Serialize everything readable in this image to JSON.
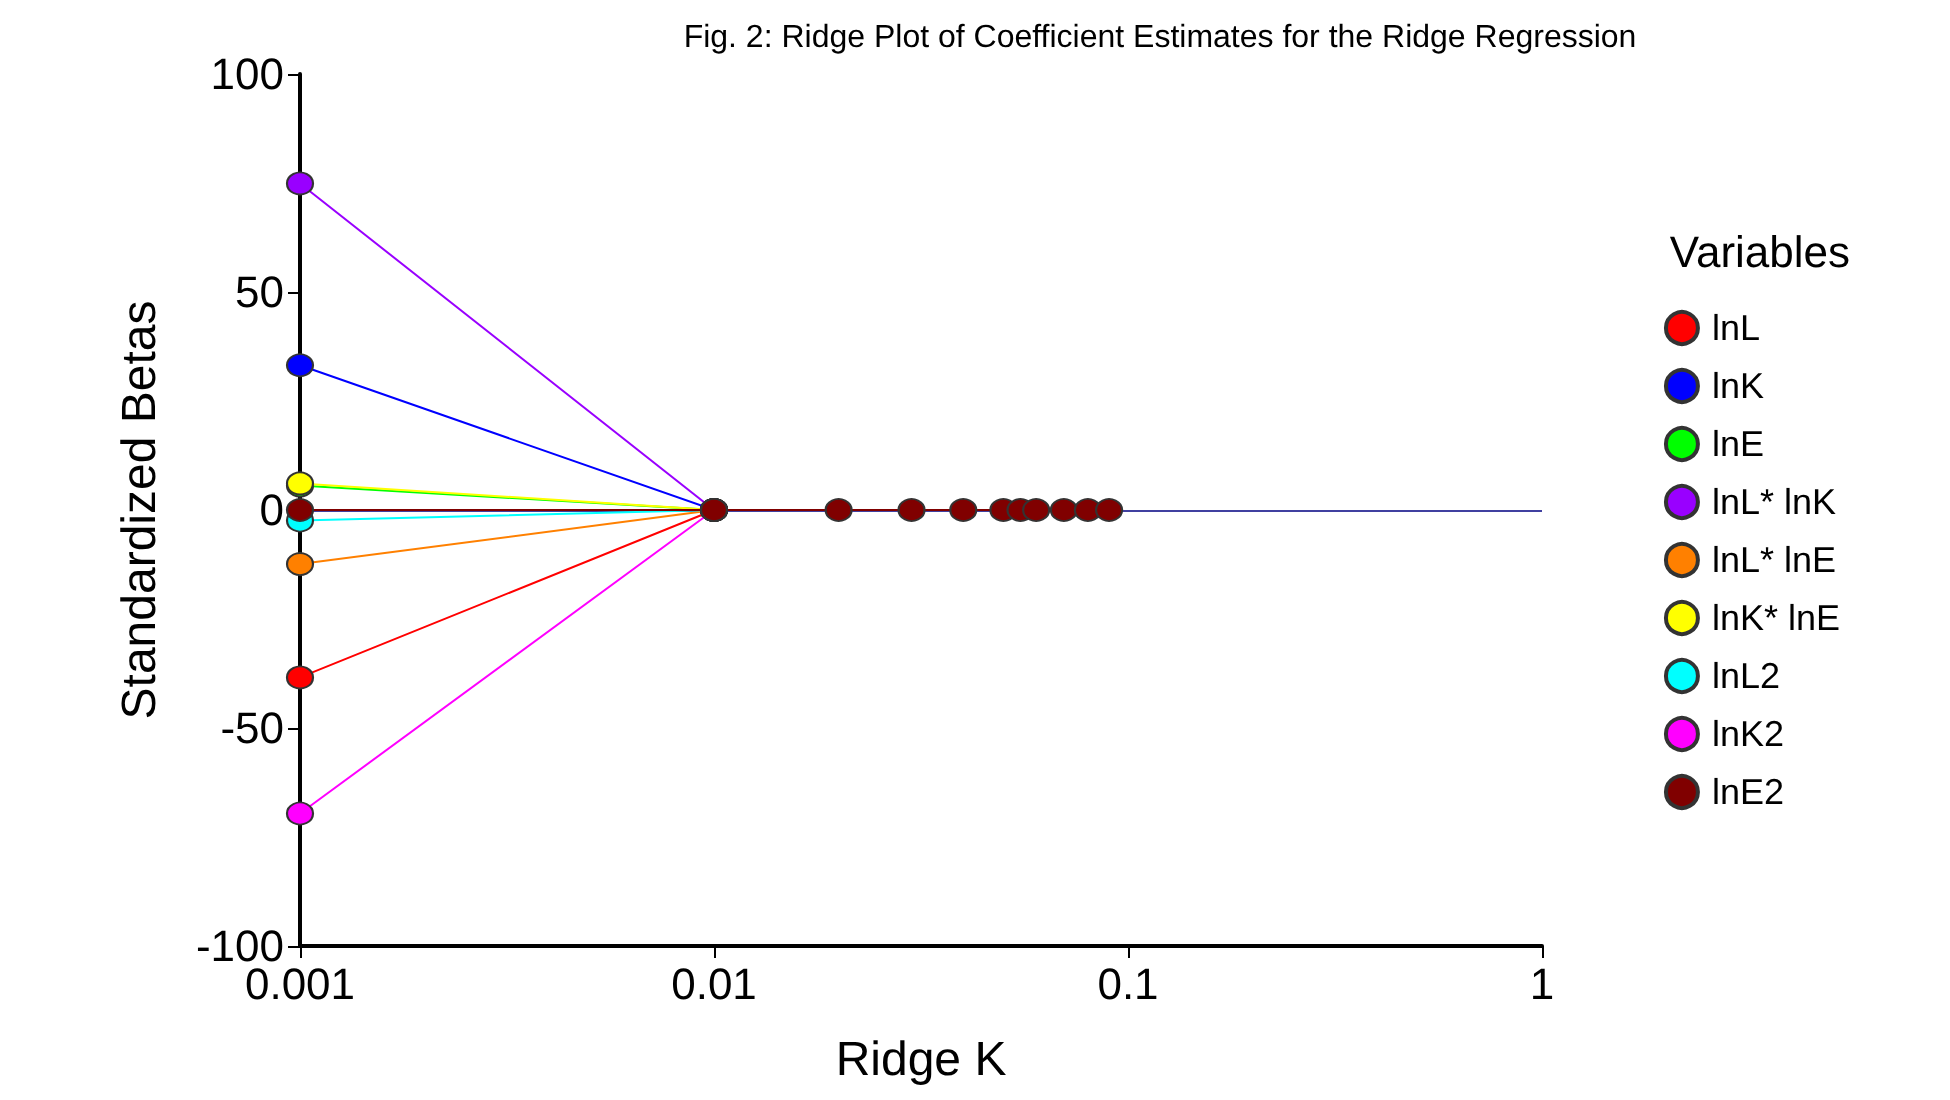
{
  "chart_data": {
    "type": "line",
    "title": "Fig. 2: Ridge Plot of Coefficient Estimates for the Ridge Regression",
    "xlabel": "Ridge K",
    "ylabel": "Standardized Betas",
    "legend_title": "Variables",
    "x": [
      0.001,
      0.01,
      0.02,
      0.03,
      0.04,
      0.05,
      0.055,
      0.06,
      0.07,
      0.08,
      0.09
    ],
    "series": [
      {
        "name": "lnL",
        "color": "#ff0000",
        "values": [
          -38.4,
          0,
          null,
          null,
          null,
          null,
          null,
          null,
          null,
          null,
          null
        ]
      },
      {
        "name": "lnK",
        "color": "#0000ff",
        "values": [
          33.2,
          0,
          null,
          null,
          null,
          null,
          null,
          null,
          null,
          null,
          null
        ]
      },
      {
        "name": "lnE",
        "color": "#00ff00",
        "values": [
          5.6,
          0,
          null,
          null,
          null,
          null,
          null,
          null,
          null,
          null,
          null
        ]
      },
      {
        "name": "lnL* lnK",
        "color": "#9900ff",
        "values": [
          74.9,
          0,
          null,
          null,
          null,
          null,
          null,
          null,
          null,
          null,
          null
        ]
      },
      {
        "name": "lnL* lnE",
        "color": "#ff8000",
        "values": [
          -12.4,
          0,
          null,
          null,
          null,
          null,
          null,
          null,
          null,
          null,
          null
        ]
      },
      {
        "name": "lnK* lnE",
        "color": "#ffff00",
        "values": [
          6.1,
          0,
          null,
          null,
          null,
          null,
          null,
          null,
          null,
          null,
          null
        ]
      },
      {
        "name": "lnL2",
        "color": "#00ffff",
        "values": [
          -2.4,
          0,
          null,
          null,
          null,
          null,
          null,
          null,
          null,
          null,
          null
        ]
      },
      {
        "name": "lnK2",
        "color": "#ff00ff",
        "values": [
          -69.6,
          0,
          null,
          null,
          null,
          null,
          null,
          null,
          null,
          null,
          null
        ]
      },
      {
        "name": "lnE2",
        "color": "#800000",
        "values": [
          0,
          0,
          0,
          0,
          0,
          0,
          0,
          0,
          0,
          0,
          0
        ]
      }
    ],
    "xlim": [
      0.001,
      1
    ],
    "xticks": [
      0.001,
      0.01,
      0.1,
      1
    ],
    "log": "x",
    "ylim": [
      -100,
      100
    ],
    "yticks": [
      -100,
      -50,
      0,
      50,
      100
    ],
    "ref_lines": [
      {
        "axis": "y",
        "value": 0,
        "color": "#4040a0"
      }
    ],
    "grid": false,
    "legend": "right",
    "marker": "circle",
    "line_style": "solid"
  }
}
